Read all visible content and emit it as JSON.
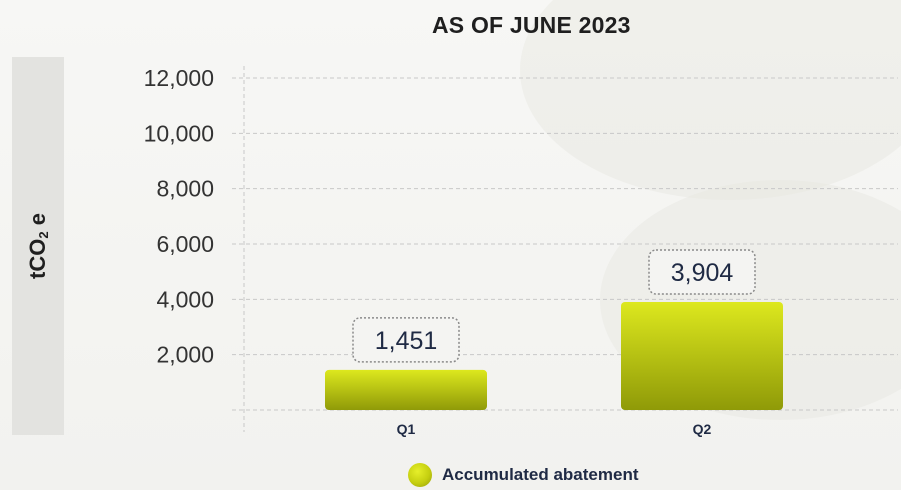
{
  "chart_data": {
    "type": "bar",
    "title": "AS OF JUNE 2023",
    "ylabel_main": "tCO",
    "ylabel_sub": "2",
    "ylabel_tail": " e",
    "categories": [
      "Q1",
      "Q2"
    ],
    "series": [
      {
        "name": "Accumulated abatement",
        "values": [
          1451,
          3904
        ],
        "value_labels": [
          "1,451",
          "3,904"
        ]
      }
    ],
    "yticks": [
      2000,
      4000,
      6000,
      8000,
      10000,
      12000
    ],
    "ytick_labels": [
      "2,000",
      "4,000",
      "6,000",
      "8,000",
      "10,000",
      "12,000"
    ],
    "ylim": [
      0,
      12000
    ],
    "grid": true,
    "legend_position": "bottom-center",
    "colors": {
      "bar_top": "#dde81e",
      "bar_bottom": "#8f9a08",
      "grid": "#c8c8c8",
      "label_border": "#8a8a8a",
      "text": "#1f2a44"
    }
  }
}
